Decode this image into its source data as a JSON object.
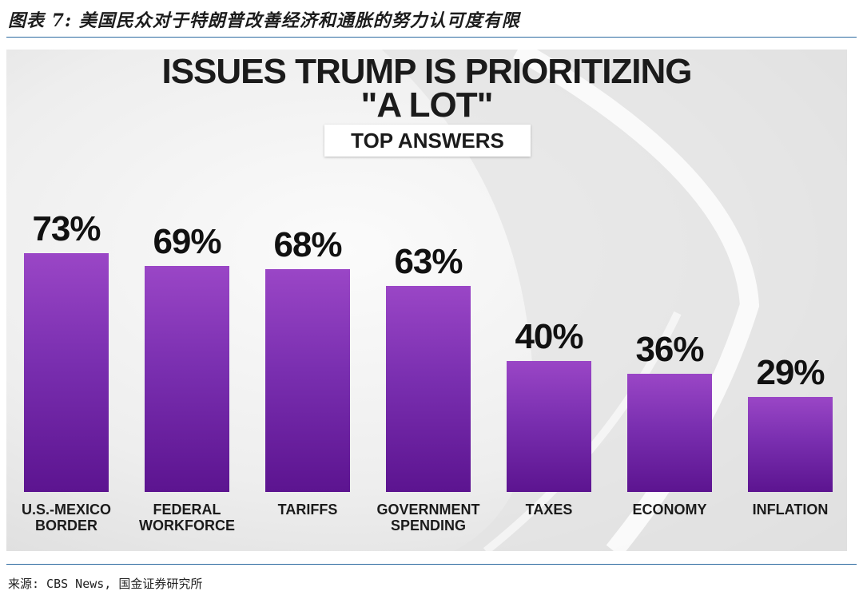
{
  "caption": "图表 7: 美国民众对于特朗普改善经济和通胀的努力认可度有限",
  "source": "来源: CBS News, 国金证券研究所",
  "chart_data": {
    "type": "bar",
    "title": "ISSUES TRUMP IS PRIORITIZING",
    "title_line2": "\"A LOT\"",
    "subtitle": "TOP ANSWERS",
    "categories": [
      "U.S.-MEXICO\nBORDER",
      "FEDERAL\nWORKFORCE",
      "TARIFFS",
      "GOVERNMENT\nSPENDING",
      "TAXES",
      "ECONOMY",
      "INFLATION"
    ],
    "values": [
      73,
      69,
      68,
      63,
      40,
      36,
      29
    ],
    "value_labels": [
      "73%",
      "69%",
      "68%",
      "63%",
      "40%",
      "36%",
      "29%"
    ],
    "unit": "%",
    "ylim": [
      0,
      100
    ],
    "grid": false,
    "bar_color": "#7a2fb0"
  }
}
